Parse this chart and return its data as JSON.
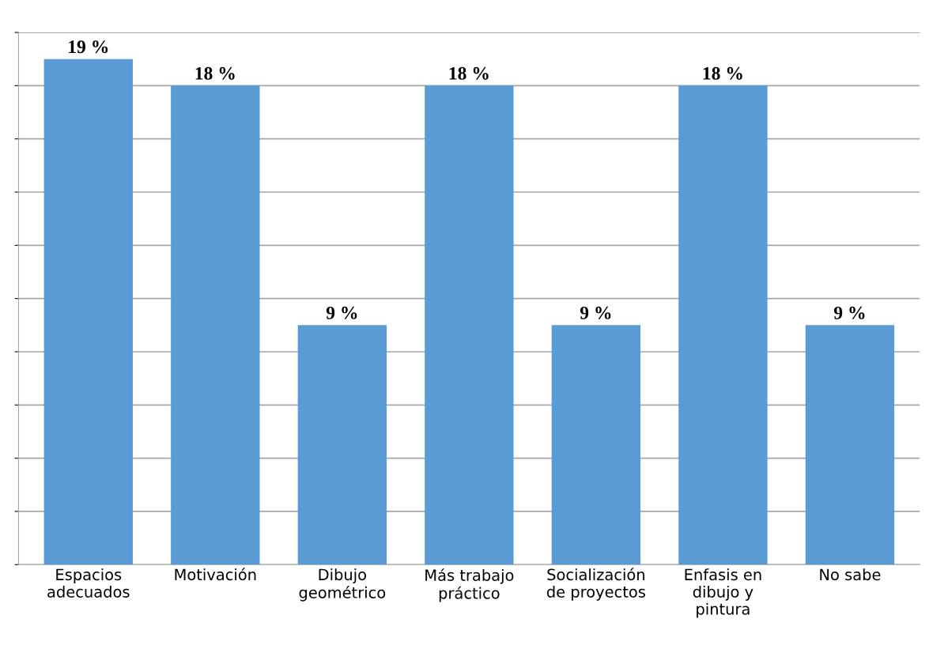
{
  "chart_data": {
    "type": "bar",
    "categories": [
      "Espacios\nadecuados",
      "Motivación",
      "Dibujo\ngeométrico",
      "Más trabajo\npráctico",
      "Socialización\nde proyectos",
      "Enfasis en\ndibujo y\npintura",
      "No sabe"
    ],
    "values": [
      19,
      18,
      9,
      18,
      9,
      18,
      9
    ],
    "value_labels": [
      "19 %",
      "18 %",
      "9 %",
      "18 %",
      "9 %",
      "18 %",
      "9 %"
    ],
    "color": "#5b9bd5",
    "ylim": [
      0,
      20
    ],
    "yticks": [
      {
        "value": 0,
        "label": null
      },
      {
        "value": 2,
        "label": null
      },
      {
        "value": 4,
        "label": null
      },
      {
        "value": 6,
        "label": null
      },
      {
        "value": 8,
        "label": null
      },
      {
        "value": 10,
        "label": null
      },
      {
        "value": 12,
        "label": null
      },
      {
        "value": 14,
        "label": null
      },
      {
        "value": 16,
        "label": null
      },
      {
        "value": 18,
        "label": null
      },
      {
        "value": 20,
        "label": null
      }
    ],
    "tick_labels": "x",
    "grid": "y",
    "legend": false
  }
}
